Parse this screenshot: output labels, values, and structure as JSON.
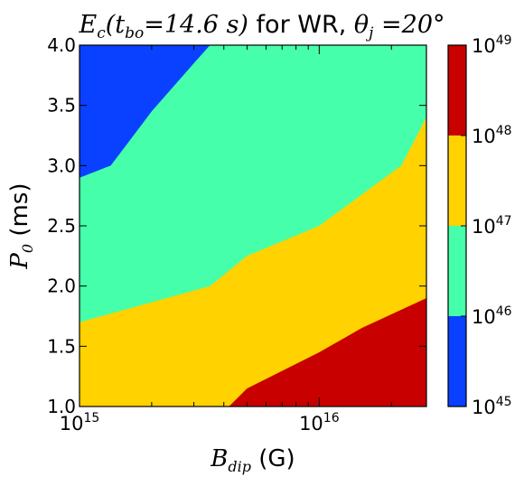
{
  "chart_data": {
    "type": "heatmap",
    "title": {
      "prefix": "E",
      "prefix_sub": "c",
      "args": "(t",
      "args_sub": "bo",
      "args_value": "=14.6 s)",
      "text": " for WR, ",
      "theta": "θ",
      "theta_sub": "j",
      "theta_value": " =20°"
    },
    "xlabel": {
      "symbol": "B",
      "sub": "dip",
      "unit": " (G)"
    },
    "ylabel": {
      "symbol": "P",
      "sub": "0",
      "unit": " (ms)"
    },
    "x_scale": "log",
    "xlim": [
      1000000000000000.0,
      2.8e+16
    ],
    "ylim": [
      1.0,
      4.0
    ],
    "x_ticks": [
      {
        "value": 1000000000000000.0,
        "base": "10",
        "exp": "15"
      },
      {
        "value": 1e+16,
        "base": "10",
        "exp": "16"
      }
    ],
    "y_ticks": [
      "1.0",
      "1.5",
      "2.0",
      "2.5",
      "3.0",
      "3.5",
      "4.0"
    ],
    "levels": [
      {
        "range": [
          1e+45,
          1e+46
        ],
        "color": "#0a40ff"
      },
      {
        "range": [
          1e+46,
          1e+47
        ],
        "color": "#46ffaa"
      },
      {
        "range": [
          1e+47,
          1e+48
        ],
        "color": "#ffd200"
      },
      {
        "range": [
          1e+48,
          1e+49
        ],
        "color": "#c80000"
      }
    ],
    "colorbar_ticks": [
      {
        "base": "10",
        "exp": "45"
      },
      {
        "base": "10",
        "exp": "46"
      },
      {
        "base": "10",
        "exp": "47"
      },
      {
        "base": "10",
        "exp": "48"
      },
      {
        "base": "10",
        "exp": "49"
      }
    ],
    "contour_boundaries": [
      {
        "between": [
          "1e45-1e46",
          "1e46-1e47"
        ],
        "points": [
          [
            1000000000000000.0,
            2.9
          ],
          [
            1350000000000000.0,
            3.0
          ],
          [
            2000000000000000.0,
            3.45
          ],
          [
            3000000000000000.0,
            3.85
          ],
          [
            3500000000000000.0,
            4.0
          ]
        ]
      },
      {
        "between": [
          "1e46-1e47",
          "1e47-1e48"
        ],
        "points": [
          [
            1000000000000000.0,
            1.7
          ],
          [
            3500000000000000.0,
            2.0
          ],
          [
            5000000000000000.0,
            2.25
          ],
          [
            1e+16,
            2.5
          ],
          [
            2.2e+16,
            3.0
          ],
          [
            2.8e+16,
            3.4
          ]
        ]
      },
      {
        "between": [
          "1e47-1e48",
          "1e48-1e49"
        ],
        "points": [
          [
            4200000000000000.0,
            1.0
          ],
          [
            5000000000000000.0,
            1.15
          ],
          [
            1e+16,
            1.45
          ],
          [
            1.5e+16,
            1.65
          ],
          [
            2.8e+16,
            1.9
          ]
        ]
      }
    ]
  }
}
